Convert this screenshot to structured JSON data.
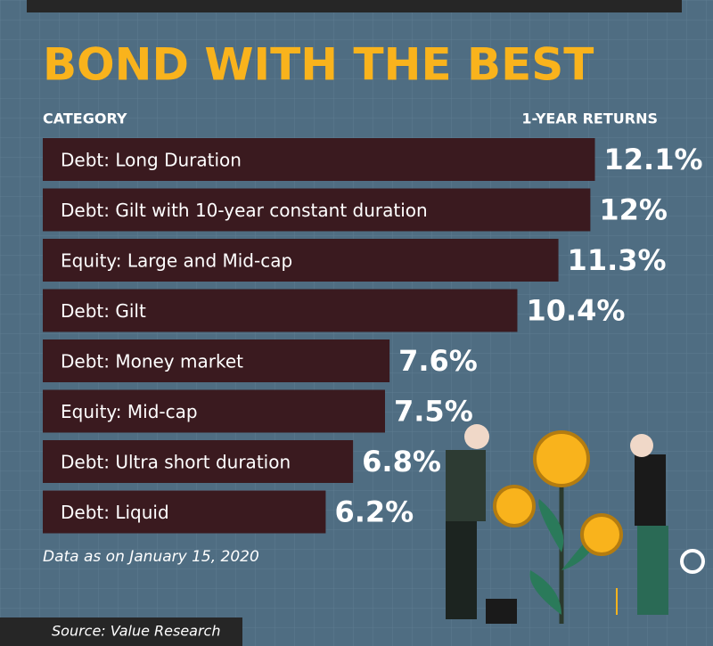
{
  "chart_data": {
    "type": "bar",
    "title": "BOND WITH THE BEST",
    "category_header": "CATEGORY",
    "value_header": "1-YEAR RETURNS",
    "categories": [
      "Debt: Long Duration",
      "Debt: Gilt with 10-year constant duration",
      "Equity: Large and Mid-cap",
      "Debt: Gilt",
      "Debt: Money market",
      "Equity: Mid-cap",
      "Debt: Ultra short duration",
      "Debt: Liquid"
    ],
    "values": [
      12.1,
      12,
      11.3,
      10.4,
      7.6,
      7.5,
      6.8,
      6.2
    ],
    "value_labels": [
      "12.1%",
      "12%",
      "11.3%",
      "10.4%",
      "7.6%",
      "7.5%",
      "6.8%",
      "6.2%"
    ],
    "color": "#3a1a1f",
    "note": "Data as on January 15, 2020",
    "source": "Source: Value Research"
  }
}
